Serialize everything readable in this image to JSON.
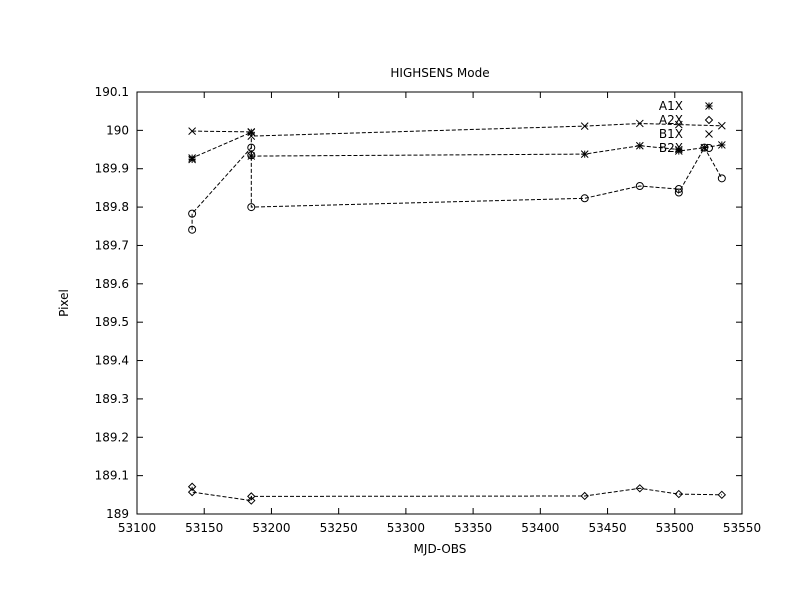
{
  "chart_data": {
    "type": "line",
    "title": "HIGHSENS Mode",
    "xlabel": "MJD-OBS",
    "ylabel": "Pixel",
    "xlim": [
      53100,
      53550
    ],
    "ylim": [
      189.0,
      190.1
    ],
    "xticks": [
      "53100",
      "53150",
      "53200",
      "53250",
      "53300",
      "53350",
      "53400",
      "53450",
      "53500",
      "53550"
    ],
    "yticks": [
      "189",
      "189.1",
      "189.2",
      "189.3",
      "189.4",
      "189.5",
      "189.6",
      "189.7",
      "189.8",
      "189.9",
      "190",
      "190.1"
    ],
    "grid": false,
    "legend_position": "top-right",
    "series": [
      {
        "name": "A1X",
        "marker": "star",
        "x": [
          53141,
          53141,
          53185,
          53185,
          53433,
          53474,
          53503,
          53503,
          53522,
          53535
        ],
        "y": [
          189.924,
          189.928,
          189.995,
          189.933,
          189.938,
          189.96,
          189.95,
          189.946,
          189.955,
          189.962
        ]
      },
      {
        "name": "A2X",
        "marker": "diamond",
        "x": [
          53141,
          53141,
          53185,
          53185,
          53433,
          53474,
          53503,
          53535
        ],
        "y": [
          189.071,
          189.057,
          189.035,
          189.046,
          189.047,
          189.067,
          189.052,
          189.05
        ]
      },
      {
        "name": "B1X",
        "marker": "cross",
        "x": [
          53141,
          53185,
          53185,
          53433,
          53474,
          53503,
          53535
        ],
        "y": [
          189.998,
          189.996,
          189.985,
          190.011,
          190.018,
          190.015,
          190.012
        ]
      },
      {
        "name": "B2X",
        "marker": "circle",
        "x": [
          53141,
          53141,
          53185,
          53185,
          53185,
          53433,
          53474,
          53503,
          53503,
          53522,
          53535
        ],
        "y": [
          189.741,
          189.783,
          189.955,
          189.935,
          189.8,
          189.823,
          189.855,
          189.847,
          189.838,
          189.955,
          189.875
        ]
      }
    ]
  }
}
